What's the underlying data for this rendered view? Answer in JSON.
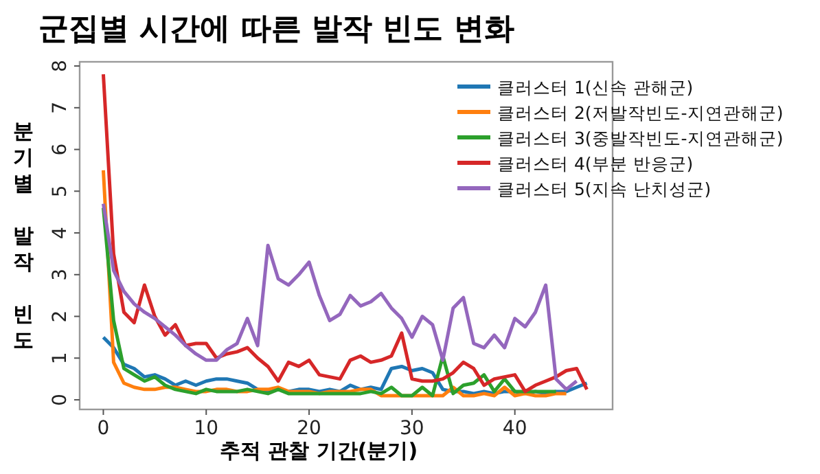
{
  "chart_data": {
    "type": "line",
    "title": "군집별 시간에 따른 발작 빈도 변화",
    "xlabel": "추적 관찰 기간(분기)",
    "ylabel": "분기별 발작 빈도",
    "x": [
      0,
      1,
      2,
      3,
      4,
      5,
      6,
      7,
      8,
      9,
      10,
      11,
      12,
      13,
      14,
      15,
      16,
      17,
      18,
      19,
      20,
      21,
      22,
      23,
      24,
      25,
      26,
      27,
      28,
      29,
      30,
      31,
      32,
      33,
      34,
      35,
      36,
      37,
      38,
      39,
      40,
      41,
      42,
      43,
      44,
      45,
      46,
      47
    ],
    "series": [
      {
        "name": "클러스터 1(신속 관해군)",
        "color": "#1f77b4",
        "values": [
          1.5,
          1.25,
          0.85,
          0.75,
          0.55,
          0.6,
          0.5,
          0.35,
          0.45,
          0.35,
          0.45,
          0.5,
          0.5,
          0.45,
          0.4,
          0.25,
          0.2,
          0.25,
          0.2,
          0.25,
          0.25,
          0.2,
          0.25,
          0.2,
          0.35,
          0.25,
          0.3,
          0.25,
          0.75,
          0.8,
          0.7,
          0.75,
          0.65,
          0.25,
          0.2,
          0.2,
          0.15,
          0.2,
          0.15,
          0.2,
          0.2,
          0.15,
          0.2,
          0.15,
          0.2,
          0.2,
          0.3,
          0.4
        ]
      },
      {
        "name": "클러스터 2(저발작빈도-지연관해군)",
        "color": "#ff7f0e",
        "values": [
          5.5,
          0.9,
          0.4,
          0.3,
          0.25,
          0.25,
          0.3,
          0.3,
          0.25,
          0.2,
          0.2,
          0.25,
          0.25,
          0.2,
          0.2,
          0.25,
          0.25,
          0.3,
          0.2,
          0.2,
          0.2,
          0.15,
          0.2,
          0.2,
          0.2,
          0.25,
          0.25,
          0.1,
          0.1,
          0.1,
          0.1,
          0.1,
          0.1,
          0.1,
          0.3,
          0.1,
          0.1,
          0.15,
          0.1,
          0.3,
          0.1,
          0.15,
          0.1,
          0.1,
          0.15,
          0.15,
          null,
          null
        ]
      },
      {
        "name": "클러스터 3(중발작빈도-지연관해군)",
        "color": "#2ca02c",
        "values": [
          4.6,
          1.9,
          0.75,
          0.6,
          0.45,
          0.55,
          0.35,
          0.25,
          0.2,
          0.15,
          0.25,
          0.2,
          0.2,
          0.2,
          0.25,
          0.2,
          0.15,
          0.25,
          0.15,
          0.15,
          0.15,
          0.15,
          0.15,
          0.15,
          0.15,
          0.15,
          0.2,
          0.15,
          0.3,
          0.1,
          0.1,
          0.3,
          0.1,
          1.05,
          0.15,
          0.35,
          0.4,
          0.6,
          0.2,
          0.5,
          0.2,
          0.2,
          0.2,
          0.2,
          0.2,
          null,
          null,
          null
        ]
      },
      {
        "name": "클러스터 4(부분 반응군)",
        "color": "#d62728",
        "values": [
          7.8,
          3.5,
          2.1,
          1.85,
          2.75,
          2.0,
          1.55,
          1.8,
          1.3,
          1.35,
          1.35,
          1.0,
          1.1,
          1.15,
          1.25,
          1.0,
          0.8,
          0.45,
          0.9,
          0.8,
          0.95,
          0.6,
          0.55,
          0.5,
          0.95,
          1.05,
          0.9,
          0.95,
          1.05,
          1.6,
          0.5,
          0.45,
          0.45,
          0.5,
          0.65,
          0.9,
          0.75,
          0.35,
          0.5,
          0.55,
          0.6,
          0.2,
          0.35,
          0.45,
          0.55,
          0.7,
          0.75,
          0.25
        ]
      },
      {
        "name": "클러스터 5(지속 난치성군)",
        "color": "#9467bd",
        "values": [
          4.7,
          3.1,
          2.6,
          2.3,
          2.1,
          1.95,
          1.75,
          1.55,
          1.3,
          1.1,
          0.95,
          0.95,
          1.2,
          1.35,
          1.95,
          1.3,
          3.7,
          2.9,
          2.75,
          3.0,
          3.3,
          2.5,
          1.9,
          2.05,
          2.5,
          2.25,
          2.35,
          2.55,
          2.2,
          1.95,
          1.5,
          2.0,
          1.8,
          0.95,
          2.2,
          2.45,
          1.35,
          1.25,
          1.55,
          1.25,
          1.95,
          1.75,
          2.1,
          2.75,
          0.5,
          0.25,
          0.45,
          null
        ]
      }
    ],
    "xlim": [
      -2.3,
      49.5
    ],
    "ylim": [
      -0.23,
      8.1
    ],
    "xticks": [
      0,
      10,
      20,
      30,
      40
    ],
    "yticks": [
      0,
      1,
      2,
      3,
      4,
      5,
      6,
      7,
      8
    ],
    "grid": false,
    "legend": "top right"
  }
}
